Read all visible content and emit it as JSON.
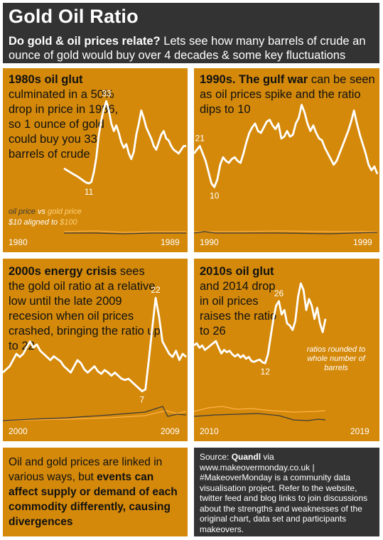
{
  "title": "Gold Oil Ratio",
  "subtitle_bold": "Do gold & oil prices relate?",
  "subtitle_rest": " Lets see how many barrels of crude an ounce of gold would buy over 4 decades & some key fluctuations",
  "legend": {
    "oil": "oil price",
    "vs": " vs ",
    "gold": "gold price",
    "line2a": "$10 aligned to ",
    "line2b": "$100"
  },
  "note": "ratios rounded to whole number of barrels",
  "bottom_left": {
    "p1": "Oil and gold prices are linked in various ways, but ",
    "p2": "events can affect supply or demand of each commodity differently, causing divergences"
  },
  "bottom_right": {
    "p1": "Source: ",
    "p2": "Quandl",
    "p3": " via www.makeovermonday.co.uk | #MakeoverMonday is a community data visualisation project. Refer to the website, twitter feed and blog links to join discussions about the strengths and weaknesses of the original chart, data set and participants makeovers."
  },
  "colors": {
    "panel": "#D4890A",
    "dark": "#333333",
    "ratio_line": "#ffffff",
    "oil_line": "#3a3a3a",
    "gold_line": "#FFB347"
  },
  "chart_data": [
    {
      "type": "line",
      "heading": "1980s oil glut",
      "text": " culminated in a 50% drop in price in 1986, so 1 ounce of gold could buy you 33 barrels of crude",
      "x_start": "1980",
      "x_end": "1989",
      "ylim": [
        0,
        38
      ],
      "series": [
        {
          "values": [
            15,
            14.6,
            14.2,
            13.8,
            13.4,
            13,
            12.6,
            12.1,
            11.6,
            11.2,
            11,
            11.4,
            14,
            18,
            24,
            28,
            31,
            33,
            30.5,
            27,
            25,
            26.5,
            24.5,
            22,
            20.5,
            21.5,
            19,
            17.5,
            19.5,
            24,
            27,
            30.5,
            28.5,
            26,
            24.5,
            23,
            21,
            20,
            22,
            24,
            25,
            23,
            22.5,
            21,
            20,
            19.5,
            19,
            20,
            21,
            21
          ]
        }
      ],
      "annotations": [
        {
          "label": "33",
          "index": 17
        },
        {
          "label": "11",
          "index": 10
        }
      ]
    },
    {
      "type": "line",
      "heading": "1990s. The gulf war",
      "text": " can be seen as oil prices spike and the ratio dips to 10",
      "x_start": "1990",
      "x_end": "1999",
      "ylim": [
        0,
        38
      ],
      "series": [
        {
          "values": [
            19,
            20,
            21,
            19,
            17,
            14,
            11,
            10,
            12,
            16,
            18,
            17,
            16.5,
            17.5,
            18,
            17,
            16.5,
            19,
            22,
            24.5,
            26,
            27,
            25,
            24.5,
            26,
            27.5,
            28,
            26.5,
            25.5,
            27,
            23,
            23.5,
            25,
            23.5,
            24,
            27,
            28.5,
            32,
            30,
            27,
            25,
            26.5,
            24.5,
            23,
            22.5,
            20.5,
            19,
            17.5,
            16,
            17,
            19,
            21,
            23,
            25,
            27.5,
            30.5,
            27,
            24,
            21.5,
            19,
            16,
            14.5,
            15.5,
            13.5
          ]
        }
      ],
      "annotations": [
        {
          "label": "21",
          "index": 2
        },
        {
          "label": "10",
          "index": 7
        }
      ]
    },
    {
      "type": "line",
      "heading": "2000s energy crisis",
      "text": " sees the gold oil ratio at a relative low until the late 2009 recesion when oil prices crashed, bringing the ratio up to 22",
      "x_start": "2000",
      "x_end": "2009",
      "ylim": [
        0,
        26
      ],
      "series": [
        {
          "values": [
            10,
            10.5,
            11,
            12,
            13,
            12.5,
            13,
            14,
            15,
            14,
            14.5,
            13.5,
            13,
            12.5,
            12,
            12.6,
            12.2,
            11.8,
            11,
            10.5,
            10,
            11,
            12,
            11.5,
            10.5,
            10,
            10.5,
            11,
            10.2,
            9.8,
            10.4,
            10,
            9.5,
            10,
            9.5,
            9,
            8.8,
            9,
            8.5,
            8,
            7.5,
            7,
            7.3,
            12,
            17,
            22,
            19,
            15,
            14,
            13,
            12.5,
            13.5,
            12,
            13,
            12.5
          ]
        }
      ],
      "annotations": [
        {
          "label": "22",
          "index": 45
        },
        {
          "label": "7",
          "index": 41
        }
      ]
    },
    {
      "type": "line",
      "heading": "2010s oil glut",
      "text": " and 2014 drop in oil prices raises the ratio to 26",
      "x_start": "2010",
      "x_end": "2019",
      "ylim": [
        0,
        34
      ],
      "series": [
        {
          "values": [
            16,
            16.5,
            15.5,
            16,
            15,
            15.5,
            16,
            16.5,
            17,
            15.5,
            14.2,
            15,
            14.5,
            14.8,
            14,
            13.5,
            14,
            13.3,
            13.8,
            13,
            13.4,
            12.5,
            12.3,
            12.6,
            12.8,
            12.2,
            12,
            14,
            18,
            22,
            25,
            26,
            23,
            24,
            21,
            20.5,
            19.5,
            21.5,
            27,
            30,
            28.5,
            24,
            26.5,
            25,
            22,
            24.5,
            21,
            19,
            22
          ]
        }
      ],
      "annotations": [
        {
          "label": "26",
          "index": 31
        },
        {
          "label": "12",
          "index": 26
        }
      ]
    }
  ]
}
